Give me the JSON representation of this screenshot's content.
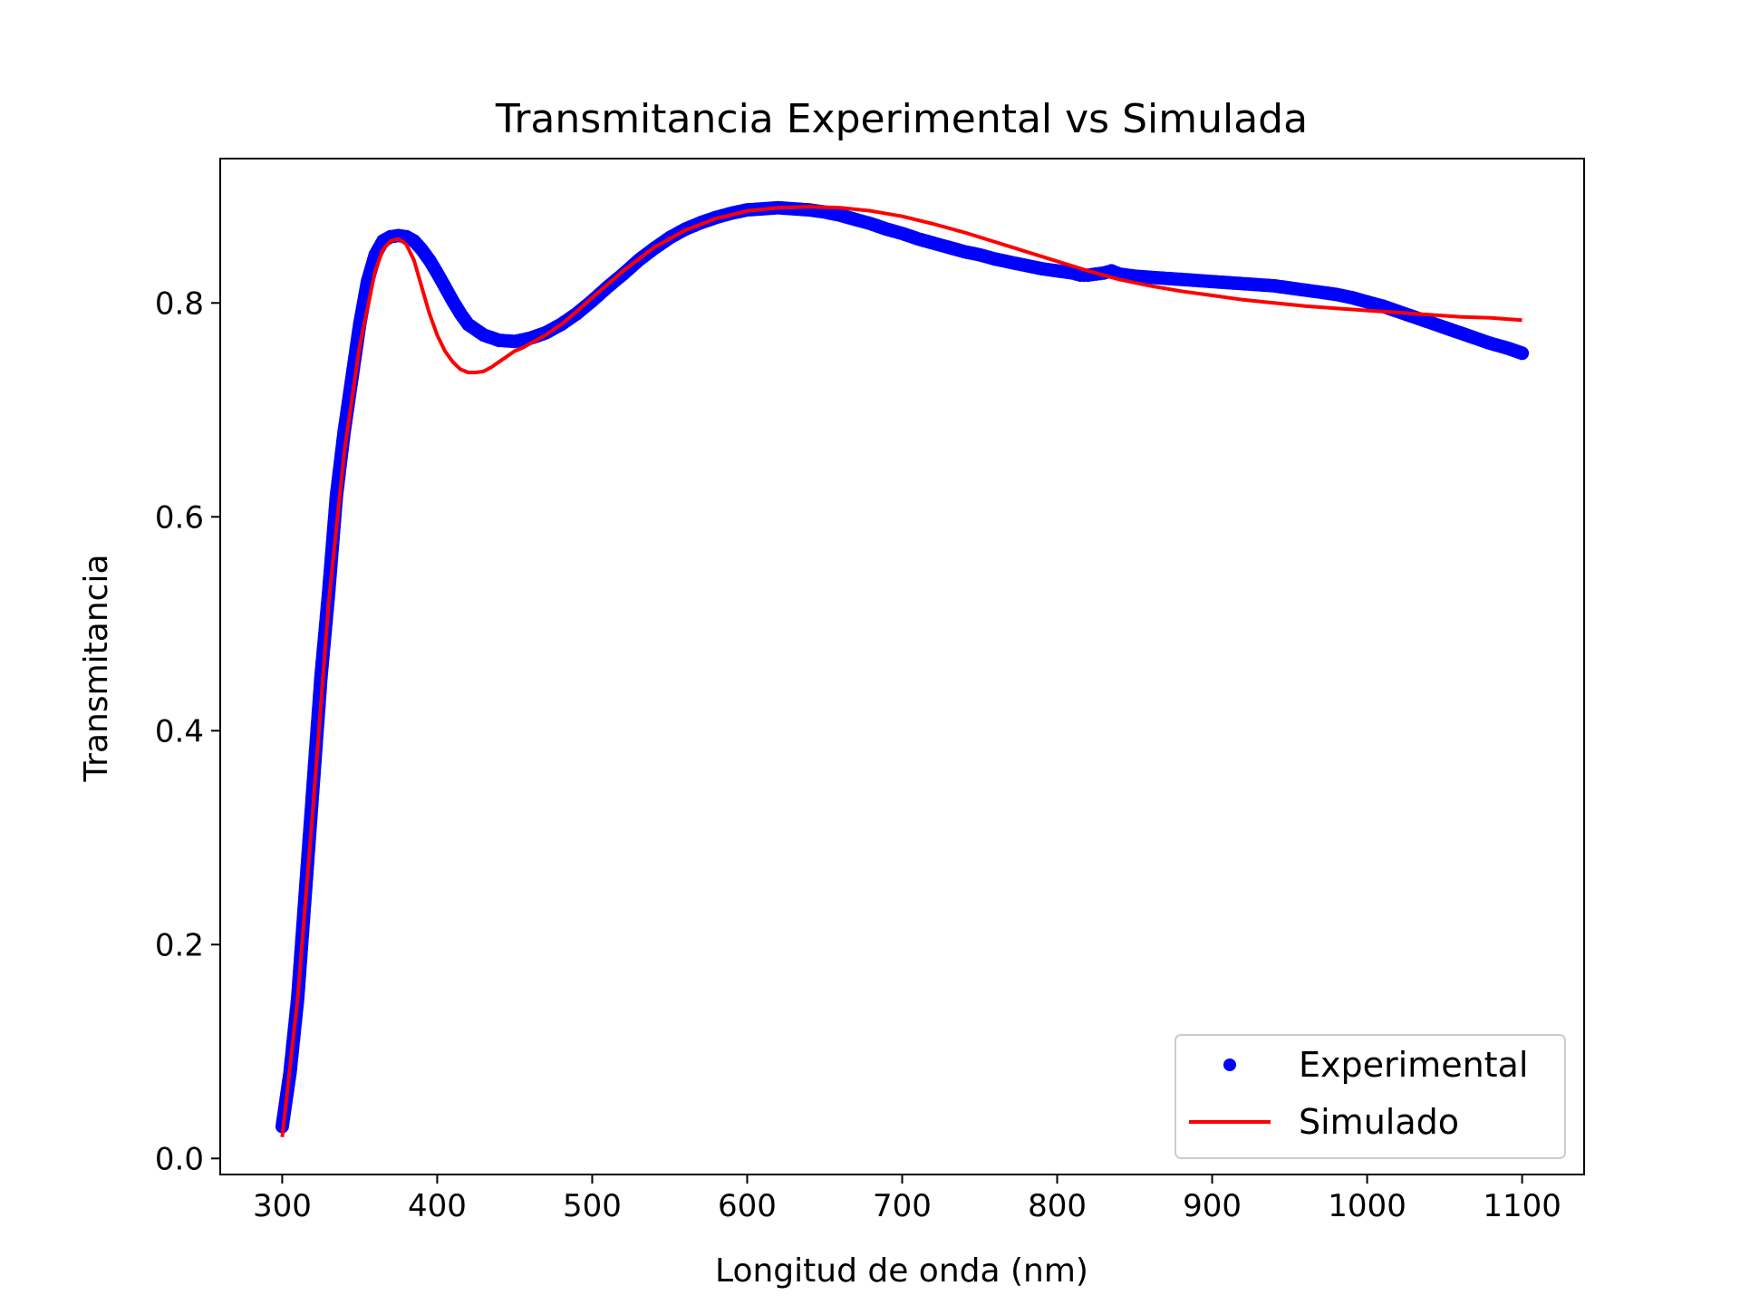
{
  "chart_data": {
    "type": "line",
    "title": "Transmitancia Experimental vs Simulada",
    "xlabel": "Longitud de onda (nm)",
    "ylabel": "Transmitancia",
    "xlim": [
      260,
      1140
    ],
    "ylim": [
      -0.015,
      0.935
    ],
    "xticks": [
      300,
      400,
      500,
      600,
      700,
      800,
      900,
      1000,
      1100
    ],
    "xtick_labels": [
      "300",
      "400",
      "500",
      "600",
      "700",
      "800",
      "900",
      "1000",
      "1100"
    ],
    "yticks": [
      0.0,
      0.2,
      0.4,
      0.6,
      0.8
    ],
    "ytick_labels": [
      "0.0",
      "0.2",
      "0.4",
      "0.6",
      "0.8"
    ],
    "grid": false,
    "legend_position": "lower-right",
    "legend": [
      "Experimental",
      "Simulado"
    ],
    "colors": {
      "experimental": "#0000ff",
      "simulado": "#ff0000"
    },
    "series": [
      {
        "name": "Experimental",
        "style": "scatter",
        "color": "#0000ff",
        "x": [
          300,
          305,
          310,
          315,
          320,
          325,
          330,
          335,
          340,
          345,
          350,
          355,
          360,
          365,
          370,
          375,
          380,
          385,
          390,
          395,
          400,
          405,
          410,
          415,
          420,
          430,
          440,
          450,
          460,
          470,
          480,
          490,
          500,
          510,
          520,
          530,
          540,
          550,
          560,
          570,
          580,
          590,
          600,
          610,
          620,
          630,
          640,
          650,
          660,
          670,
          680,
          690,
          700,
          710,
          720,
          730,
          740,
          750,
          760,
          770,
          780,
          790,
          800,
          810,
          815,
          820,
          825,
          830,
          835,
          840,
          850,
          860,
          870,
          880,
          890,
          900,
          910,
          920,
          930,
          940,
          950,
          960,
          970,
          980,
          990,
          1000,
          1010,
          1020,
          1030,
          1040,
          1050,
          1060,
          1070,
          1080,
          1090,
          1100
        ],
        "y": [
          0.03,
          0.08,
          0.15,
          0.25,
          0.35,
          0.45,
          0.53,
          0.62,
          0.68,
          0.73,
          0.78,
          0.82,
          0.845,
          0.858,
          0.862,
          0.863,
          0.862,
          0.858,
          0.85,
          0.84,
          0.828,
          0.815,
          0.802,
          0.79,
          0.78,
          0.77,
          0.765,
          0.764,
          0.767,
          0.772,
          0.78,
          0.79,
          0.802,
          0.815,
          0.827,
          0.84,
          0.851,
          0.861,
          0.869,
          0.875,
          0.88,
          0.884,
          0.887,
          0.888,
          0.889,
          0.888,
          0.887,
          0.885,
          0.882,
          0.878,
          0.874,
          0.869,
          0.865,
          0.86,
          0.856,
          0.852,
          0.848,
          0.845,
          0.841,
          0.838,
          0.835,
          0.832,
          0.83,
          0.828,
          0.826,
          0.826,
          0.827,
          0.828,
          0.83,
          0.827,
          0.825,
          0.824,
          0.823,
          0.822,
          0.821,
          0.82,
          0.819,
          0.818,
          0.817,
          0.816,
          0.814,
          0.812,
          0.81,
          0.808,
          0.805,
          0.801,
          0.797,
          0.792,
          0.787,
          0.782,
          0.777,
          0.772,
          0.767,
          0.762,
          0.758,
          0.753
        ]
      },
      {
        "name": "Simulado",
        "style": "line",
        "color": "#ff0000",
        "x": [
          300,
          310,
          320,
          330,
          340,
          350,
          360,
          365,
          370,
          375,
          380,
          385,
          390,
          395,
          400,
          405,
          410,
          415,
          420,
          425,
          430,
          435,
          440,
          445,
          450,
          455,
          460,
          470,
          480,
          490,
          500,
          520,
          540,
          560,
          580,
          600,
          620,
          640,
          660,
          680,
          700,
          720,
          740,
          760,
          780,
          800,
          820,
          840,
          860,
          880,
          900,
          920,
          940,
          960,
          980,
          1000,
          1020,
          1040,
          1060,
          1080,
          1100
        ],
        "y": [
          0.02,
          0.15,
          0.33,
          0.52,
          0.66,
          0.76,
          0.83,
          0.85,
          0.858,
          0.86,
          0.855,
          0.84,
          0.815,
          0.79,
          0.77,
          0.755,
          0.745,
          0.738,
          0.735,
          0.735,
          0.736,
          0.74,
          0.745,
          0.75,
          0.755,
          0.758,
          0.762,
          0.77,
          0.78,
          0.792,
          0.805,
          0.83,
          0.852,
          0.868,
          0.879,
          0.886,
          0.889,
          0.89,
          0.889,
          0.886,
          0.881,
          0.874,
          0.866,
          0.857,
          0.848,
          0.839,
          0.83,
          0.822,
          0.816,
          0.811,
          0.807,
          0.803,
          0.8,
          0.797,
          0.795,
          0.793,
          0.791,
          0.789,
          0.787,
          0.786,
          0.784
        ]
      }
    ]
  }
}
